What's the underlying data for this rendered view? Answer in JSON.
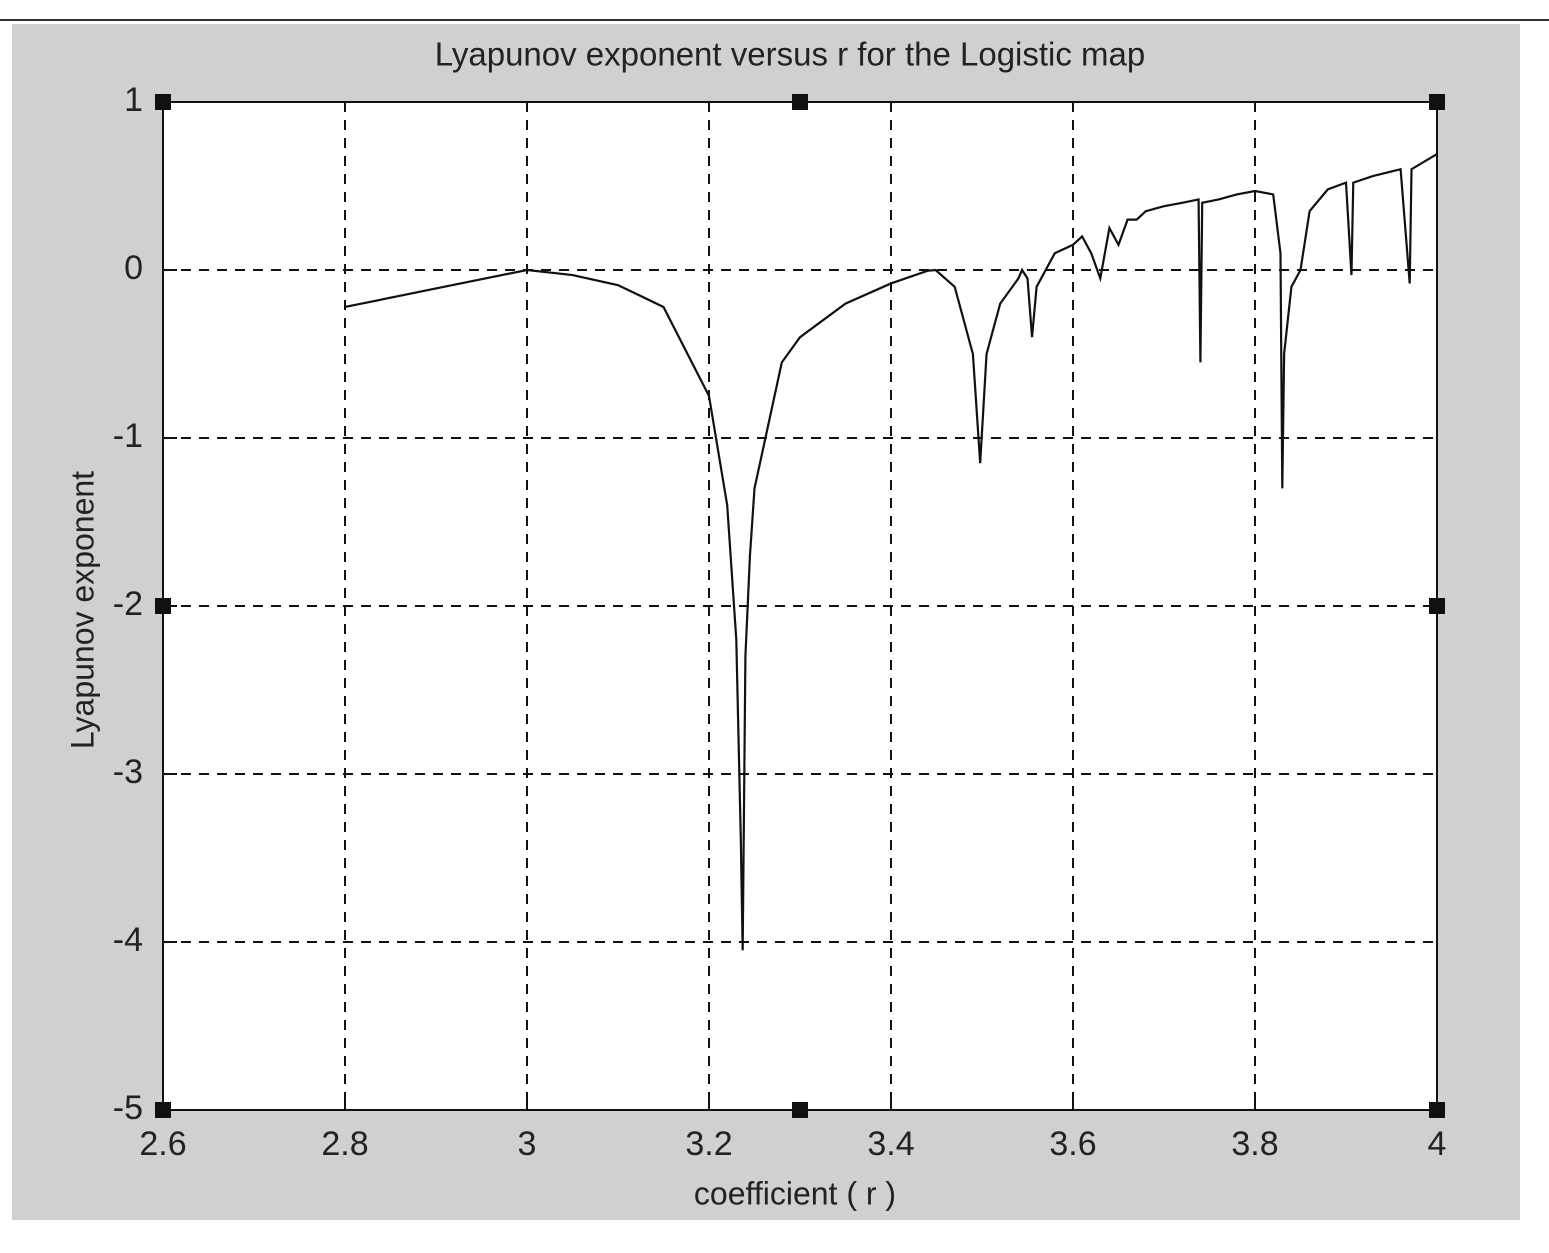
{
  "chart_data": {
    "type": "line",
    "title": "Lyapunov exponent versus r for the Logistic map",
    "x_label": "coefficient ( r )",
    "y_label": "Lyapunov exponent",
    "x": [
      2.8,
      2.9,
      3.0,
      3.05,
      3.1,
      3.15,
      3.2,
      3.22,
      3.23,
      3.235,
      3.237,
      3.24,
      3.245,
      3.25,
      3.28,
      3.3,
      3.35,
      3.4,
      3.44,
      3.449,
      3.47,
      3.49,
      3.498,
      3.505,
      3.52,
      3.54,
      3.544,
      3.55,
      3.555,
      3.56,
      3.57,
      3.58,
      3.6,
      3.61,
      3.62,
      3.63,
      3.64,
      3.65,
      3.66,
      3.67,
      3.68,
      3.7,
      3.72,
      3.738,
      3.74,
      3.742,
      3.76,
      3.78,
      3.8,
      3.82,
      3.828,
      3.83,
      3.832,
      3.84,
      3.85,
      3.86,
      3.88,
      3.9,
      3.906,
      3.908,
      3.93,
      3.96,
      3.97,
      3.972,
      4.0
    ],
    "series": [
      {
        "name": "Lyapunov exponent",
        "color": "#111111",
        "values": [
          -0.22,
          -0.11,
          0.0,
          -0.03,
          -0.09,
          -0.22,
          -0.75,
          -1.4,
          -2.2,
          -3.4,
          -4.05,
          -2.3,
          -1.7,
          -1.3,
          -0.55,
          -0.4,
          -0.2,
          -0.08,
          -0.005,
          0.0,
          -0.1,
          -0.5,
          -1.15,
          -0.5,
          -0.2,
          -0.05,
          0.0,
          -0.05,
          -0.4,
          -0.1,
          0.0,
          0.1,
          0.15,
          0.2,
          0.1,
          -0.05,
          0.25,
          0.15,
          0.3,
          0.3,
          0.35,
          0.38,
          0.4,
          0.42,
          -0.55,
          0.4,
          0.42,
          0.45,
          0.47,
          0.45,
          0.1,
          -1.3,
          -0.5,
          -0.1,
          0.0,
          0.35,
          0.48,
          0.52,
          -0.03,
          0.52,
          0.56,
          0.6,
          -0.08,
          0.6,
          0.69
        ]
      }
    ],
    "xlim": [
      2.6,
      4
    ],
    "ylim": [
      -5,
      1
    ],
    "xticks": [
      2.6,
      2.8,
      3,
      3.2,
      3.4,
      3.6,
      3.8,
      4
    ],
    "yticks": [
      -5,
      -4,
      -3,
      -2,
      -1,
      0,
      1
    ],
    "grid": true
  }
}
